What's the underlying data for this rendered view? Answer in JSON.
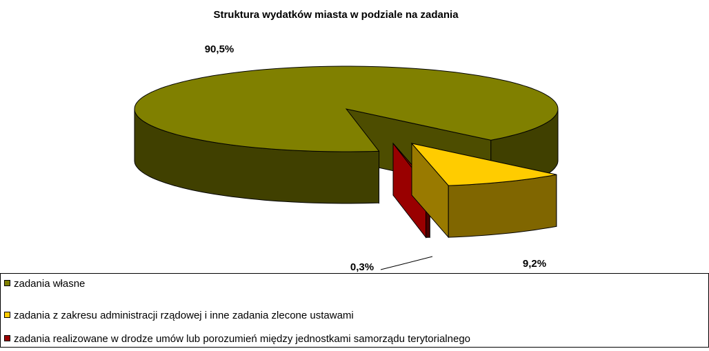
{
  "chart_data": {
    "type": "pie3d",
    "title": "Struktura wydatków miasta w podziale na zadania",
    "categories": [
      "zadania własne",
      "zadania z zakresu administracji rządowej i inne zadania zlecone ustawami",
      "zadania realizowane w drodze umów lub porozumień między jednostkami samorządu terytorialnego"
    ],
    "values": [
      90.5,
      9.2,
      0.3
    ],
    "value_labels": [
      "90,5%",
      "9,2%",
      "0,3%"
    ],
    "colors": [
      "#808000",
      "#ffcc00",
      "#990000"
    ],
    "legend": "bottom"
  }
}
